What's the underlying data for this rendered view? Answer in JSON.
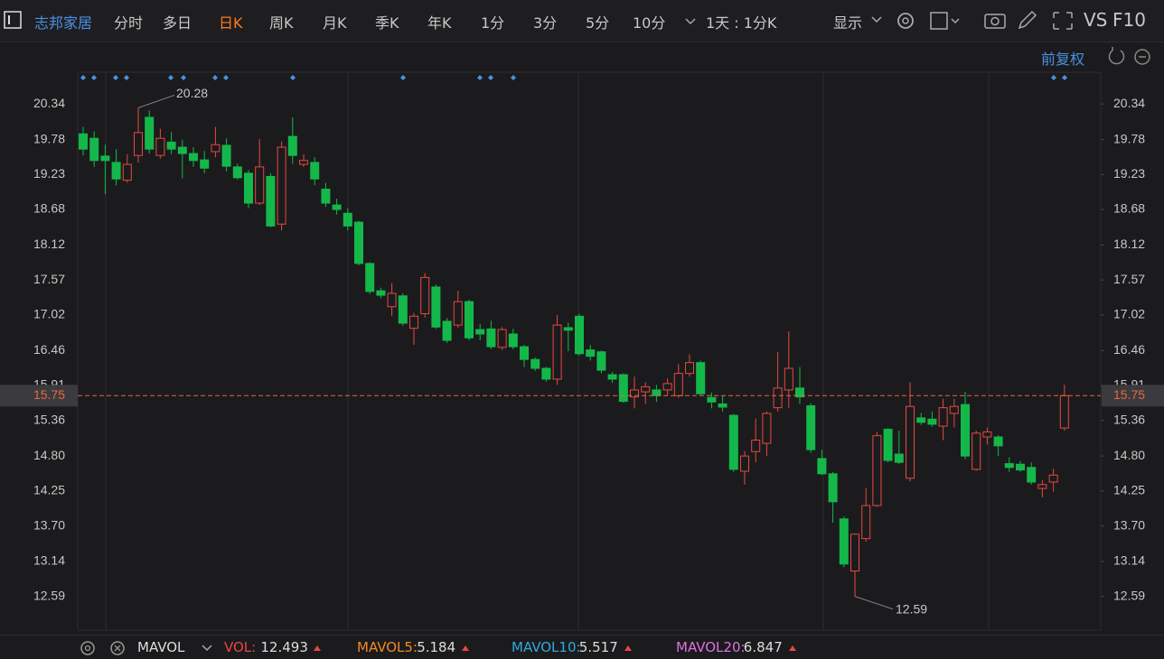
{
  "toolbar": {
    "stock_name": "志邦家居",
    "tabs": [
      "分时",
      "多日",
      "日K",
      "周K",
      "月K",
      "季K",
      "年K",
      "1分",
      "3分",
      "5分",
      "10分"
    ],
    "active_tab": 2,
    "period": "1天 : 1分K",
    "display": "显示",
    "vs": "VS",
    "f10": "F10"
  },
  "adjust": "前复权",
  "indicator_bar": {
    "name": "MAVOL",
    "stats": [
      {
        "label": "VOL:",
        "value": 12.493,
        "color": "#e8483f"
      },
      {
        "label": "MAVOL5:",
        "value": 5.184,
        "color": "#f08a24"
      },
      {
        "label": "MAVOL10:",
        "value": 5.517,
        "color": "#2fa8e0"
      },
      {
        "label": "MAVOL20:",
        "value": 6.847,
        "color": "#e070e0"
      }
    ]
  },
  "chart_data": {
    "type": "candlestick",
    "up_color": "#e8483f",
    "down_color": "#14b84a",
    "price_line_color": "#e8683f",
    "ylim": [
      12.06,
      20.84
    ],
    "yticks": [
      20.34,
      19.78,
      19.23,
      18.68,
      18.12,
      17.57,
      17.02,
      16.46,
      15.91,
      15.36,
      {
        "value": 14.8,
        "label": "14.80"
      },
      14.25,
      {
        "value": 13.7,
        "label": "13.70"
      },
      13.14,
      12.59
    ],
    "open": [
      19.87,
      19.8,
      19.52,
      19.42,
      19.14,
      19.53,
      20.13,
      19.53,
      19.74,
      19.66,
      19.56,
      19.46,
      19.59,
      19.69,
      19.35,
      19.25,
      18.78,
      19.2,
      18.45,
      19.83,
      19.39,
      19.42,
      19.0,
      18.75,
      18.62,
      18.48,
      17.83,
      17.4,
      17.15,
      17.32,
      16.81,
      17.04,
      17.46,
      16.92,
      16.86,
      17.23,
      16.79,
      16.8,
      16.51,
      16.72,
      16.52,
      16.32,
      16.18,
      16.01,
      16.82,
      17.0,
      16.47,
      16.44,
      16.08,
      16.08,
      15.73,
      15.81,
      15.84,
      15.84,
      15.75,
      16.1,
      16.27,
      15.72,
      15.62,
      15.44,
      14.56,
      14.87,
      15.0,
      15.56,
      15.84,
      15.87,
      15.59,
      14.76,
      14.52,
      13.81,
      12.99,
      13.5,
      14.02,
      15.22,
      14.83,
      14.45,
      15.4,
      15.38,
      15.27,
      15.47,
      15.61,
      14.59,
      15.1,
      15.1,
      14.68,
      14.67,
      14.62,
      14.29,
      14.39,
      15.24
    ],
    "high": [
      19.98,
      19.91,
      19.7,
      19.63,
      19.55,
      20.28,
      20.24,
      19.95,
      19.9,
      19.78,
      19.66,
      19.6,
      19.98,
      19.8,
      19.4,
      19.3,
      19.79,
      19.25,
      19.75,
      20.13,
      19.55,
      19.5,
      19.1,
      18.85,
      18.7,
      18.5,
      17.85,
      17.45,
      17.52,
      17.36,
      17.05,
      17.68,
      17.5,
      16.97,
      17.4,
      17.26,
      16.88,
      16.93,
      16.83,
      16.8,
      16.55,
      16.35,
      16.2,
      17.02,
      16.9,
      17.04,
      16.55,
      16.46,
      16.12,
      16.1,
      16.05,
      15.96,
      15.92,
      16.02,
      16.25,
      16.4,
      16.3,
      15.8,
      15.75,
      15.46,
      14.88,
      15.39,
      15.5,
      16.44,
      16.76,
      16.2,
      15.63,
      14.9,
      14.55,
      13.85,
      13.58,
      14.3,
      15.18,
      15.24,
      15.2,
      15.96,
      15.48,
      15.5,
      15.7,
      15.7,
      15.81,
      15.2,
      15.25,
      15.13,
      14.78,
      14.72,
      14.7,
      14.42,
      14.6,
      15.92
    ],
    "low": [
      19.53,
      19.35,
      18.92,
      19.06,
      19.1,
      19.42,
      19.56,
      19.48,
      19.55,
      19.17,
      19.35,
      19.25,
      19.5,
      19.28,
      19.15,
      18.7,
      18.75,
      18.4,
      18.35,
      19.4,
      19.35,
      19.06,
      18.72,
      18.6,
      18.35,
      17.8,
      17.35,
      17.28,
      17.0,
      16.85,
      16.55,
      16.98,
      16.8,
      16.58,
      16.82,
      16.62,
      16.62,
      16.48,
      16.47,
      16.48,
      16.2,
      16.14,
      15.97,
      15.92,
      16.45,
      16.38,
      16.3,
      16.1,
      15.95,
      15.64,
      15.55,
      15.62,
      15.65,
      15.75,
      15.72,
      16.05,
      15.75,
      15.55,
      15.5,
      14.55,
      14.35,
      14.7,
      14.8,
      15.5,
      15.56,
      15.62,
      14.85,
      14.5,
      13.75,
      13.05,
      12.59,
      13.45,
      14.0,
      14.7,
      14.67,
      14.4,
      15.29,
      15.26,
      15.05,
      15.25,
      14.75,
      14.57,
      14.98,
      14.8,
      14.55,
      14.55,
      14.35,
      14.15,
      14.24,
      15.2
    ],
    "close": [
      19.63,
      19.45,
      19.45,
      19.16,
      19.39,
      19.89,
      19.63,
      19.8,
      19.63,
      19.56,
      19.45,
      19.33,
      19.7,
      19.36,
      19.18,
      18.78,
      19.35,
      18.42,
      19.66,
      19.53,
      19.45,
      19.16,
      18.78,
      18.68,
      18.42,
      17.83,
      17.39,
      17.33,
      17.36,
      16.89,
      17.0,
      17.61,
      16.83,
      16.62,
      17.23,
      16.66,
      16.72,
      16.52,
      16.79,
      16.52,
      16.32,
      16.18,
      16.01,
      16.86,
      16.78,
      16.41,
      16.37,
      16.15,
      16.01,
      15.66,
      15.84,
      15.89,
      15.75,
      15.94,
      16.1,
      16.27,
      15.78,
      15.65,
      15.57,
      14.59,
      14.8,
      15.05,
      15.47,
      15.87,
      16.18,
      15.73,
      14.9,
      14.52,
      14.08,
      13.1,
      13.57,
      14.02,
      15.12,
      14.73,
      14.7,
      15.58,
      15.33,
      15.3,
      15.56,
      15.58,
      14.8,
      15.16,
      15.18,
      14.96,
      14.62,
      14.58,
      14.39,
      14.35,
      14.5,
      15.75
    ]
  }
}
